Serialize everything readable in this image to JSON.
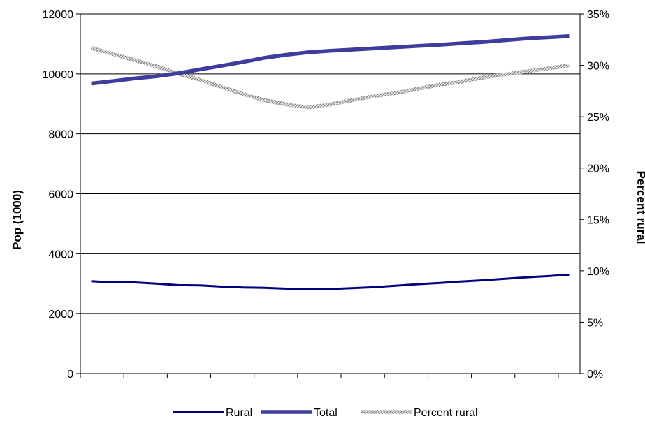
{
  "chart_data": {
    "type": "line",
    "title": "",
    "ylabel": "Pop (1000)",
    "y2label": "Percent rural",
    "ylim": [
      0,
      12000
    ],
    "y2lim": [
      0,
      0.35
    ],
    "yticks": [
      "0",
      "2000",
      "4000",
      "6000",
      "8000",
      "10000",
      "12000"
    ],
    "y2ticks": [
      "0%",
      "5%",
      "10%",
      "15%",
      "20%",
      "25%",
      "30%",
      "35%"
    ],
    "x": [
      1,
      2,
      3,
      4,
      5,
      6,
      7,
      8,
      9,
      10,
      11,
      12,
      13,
      14,
      15,
      16,
      17,
      18,
      19,
      20,
      21,
      22,
      23
    ],
    "grid": "horizontal",
    "legend_position": "bottom",
    "series": [
      {
        "name": "Rural",
        "axis": "left",
        "color": "#000080",
        "values": [
          3080,
          3040,
          3040,
          3000,
          2950,
          2940,
          2900,
          2870,
          2860,
          2830,
          2820,
          2820,
          2850,
          2880,
          2930,
          2980,
          3020,
          3070,
          3110,
          3160,
          3210,
          3250,
          3300
        ]
      },
      {
        "name": "Total",
        "axis": "left",
        "color": "#3d3d9e",
        "values": [
          9680,
          9760,
          9850,
          9920,
          10020,
          10150,
          10270,
          10400,
          10540,
          10640,
          10720,
          10770,
          10810,
          10850,
          10890,
          10930,
          10970,
          11020,
          11060,
          11120,
          11180,
          11220,
          11260
        ]
      },
      {
        "name": "Percent rural",
        "axis": "right",
        "color": "#b8b8b8",
        "values": [
          0.317,
          0.311,
          0.305,
          0.299,
          0.292,
          0.286,
          0.279,
          0.272,
          0.266,
          0.262,
          0.259,
          0.262,
          0.266,
          0.27,
          0.273,
          0.277,
          0.281,
          0.284,
          0.288,
          0.291,
          0.294,
          0.297,
          0.3
        ]
      }
    ]
  }
}
